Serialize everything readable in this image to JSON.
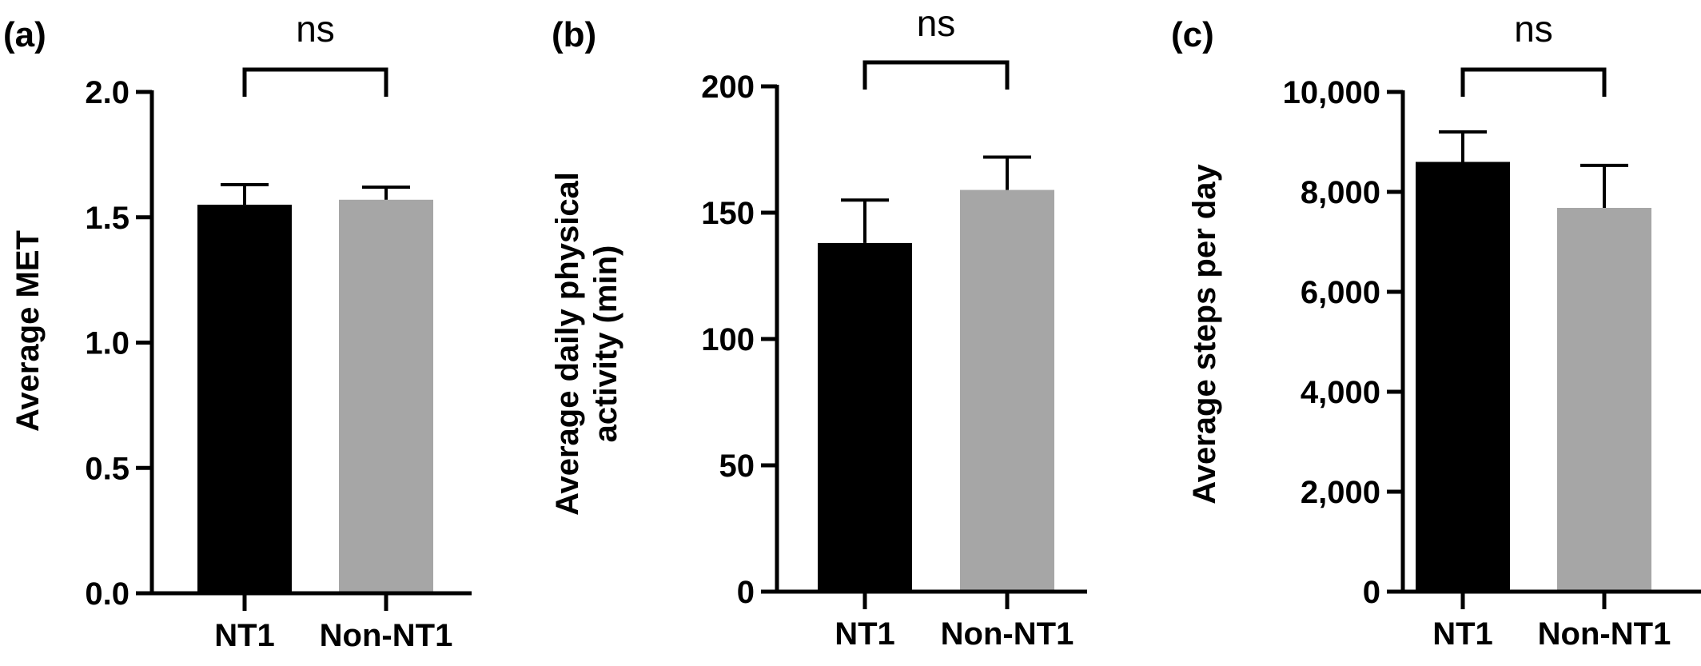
{
  "chart_data": [
    {
      "type": "bar",
      "panel_label": "(a)",
      "categories": [
        "NT1",
        "Non-NT1"
      ],
      "values": [
        1.55,
        1.57
      ],
      "error_upper": [
        1.63,
        1.62
      ],
      "colors": [
        "#000000",
        "#a6a6a6"
      ],
      "ylabel": [
        "Average MET"
      ],
      "ylim": [
        0,
        2.0
      ],
      "yticks": [
        0,
        0.5,
        1.0,
        1.5,
        2.0
      ],
      "ytick_labels": [
        "0.0",
        "0.5",
        "1.0",
        "1.5",
        "2.0"
      ],
      "significance": "ns",
      "grid": false
    },
    {
      "type": "bar",
      "panel_label": "(b)",
      "categories": [
        "NT1",
        "Non-NT1"
      ],
      "values": [
        138,
        159
      ],
      "error_upper": [
        155,
        172
      ],
      "colors": [
        "#000000",
        "#a6a6a6"
      ],
      "ylabel": [
        "Average daily physical",
        "activity (min)"
      ],
      "ylim": [
        0,
        200
      ],
      "yticks": [
        0,
        50,
        100,
        150,
        200
      ],
      "ytick_labels": [
        "0",
        "50",
        "100",
        "150",
        "200"
      ],
      "significance": "ns",
      "grid": false
    },
    {
      "type": "bar",
      "panel_label": "(c)",
      "categories": [
        "NT1",
        "Non-NT1"
      ],
      "values": [
        8600,
        7680
      ],
      "error_upper": [
        9200,
        8530
      ],
      "colors": [
        "#000000",
        "#a6a6a6"
      ],
      "ylabel": [
        "Average steps per day"
      ],
      "ylim": [
        0,
        10000
      ],
      "yticks": [
        0,
        2000,
        4000,
        6000,
        8000,
        10000
      ],
      "ytick_labels": [
        "0",
        "2,000",
        "4,000",
        "6,000",
        "8,000",
        "10,000"
      ],
      "significance": "ns",
      "grid": false
    }
  ]
}
